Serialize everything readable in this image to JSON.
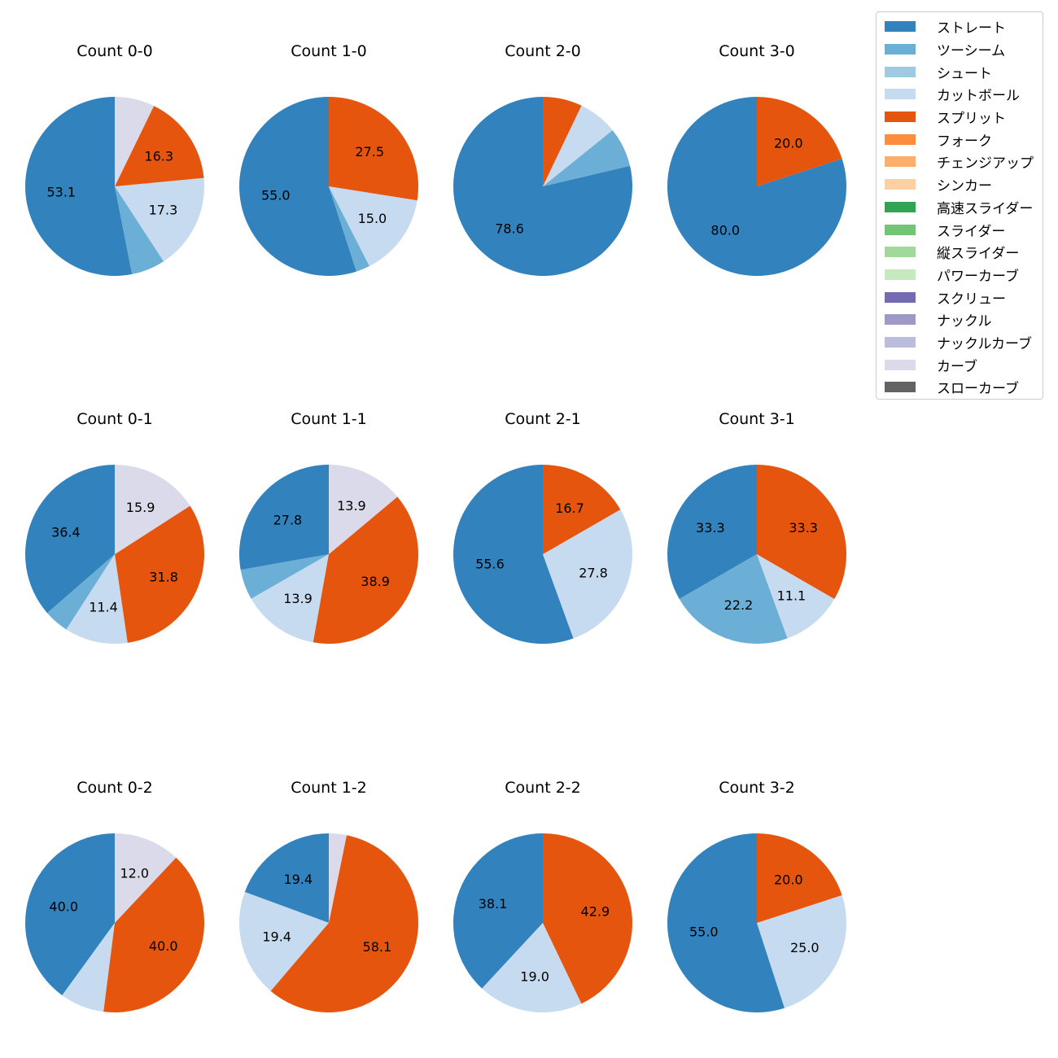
{
  "chart_data": {
    "type": "pie",
    "legend": {
      "placement": "top-right",
      "entries": [
        {
          "name": "ストレート",
          "color": "#3182bd"
        },
        {
          "name": "ツーシーム",
          "color": "#6baed6"
        },
        {
          "name": "シュート",
          "color": "#9ecae1"
        },
        {
          "name": "カットボール",
          "color": "#c6dbef"
        },
        {
          "name": "スプリット",
          "color": "#e6550d"
        },
        {
          "name": "フォーク",
          "color": "#fd8d3c"
        },
        {
          "name": "チェンジアップ",
          "color": "#fdae6b"
        },
        {
          "name": "シンカー",
          "color": "#fdd0a2"
        },
        {
          "name": "高速スライダー",
          "color": "#31a354"
        },
        {
          "name": "スライダー",
          "color": "#74c476"
        },
        {
          "name": "縦スライダー",
          "color": "#a1d99b"
        },
        {
          "name": "パワーカーブ",
          "color": "#c7e9c0"
        },
        {
          "name": "スクリュー",
          "color": "#756bb1"
        },
        {
          "name": "ナックル",
          "color": "#9e9ac8"
        },
        {
          "name": "ナックルカーブ",
          "color": "#bcbddc"
        },
        {
          "name": "カーブ",
          "color": "#dadaeb"
        },
        {
          "name": "スローカーブ",
          "color": "#636363"
        }
      ]
    },
    "pies": [
      {
        "title": "Count 0-0",
        "slices": [
          {
            "name": "ストレート",
            "value": 53.1,
            "label": "53.1"
          },
          {
            "name": "ツーシーム",
            "value": 6.1
          },
          {
            "name": "カットボール",
            "value": 17.3,
            "label": "17.3"
          },
          {
            "name": "スプリット",
            "value": 16.3,
            "label": "16.3"
          },
          {
            "name": "カーブ",
            "value": 7.2
          }
        ]
      },
      {
        "title": "Count 1-0",
        "slices": [
          {
            "name": "ストレート",
            "value": 55.0,
            "label": "55.0"
          },
          {
            "name": "ツーシーム",
            "value": 2.5
          },
          {
            "name": "カットボール",
            "value": 15.0,
            "label": "15.0"
          },
          {
            "name": "スプリット",
            "value": 27.5,
            "label": "27.5"
          }
        ]
      },
      {
        "title": "Count 2-0",
        "slices": [
          {
            "name": "ストレート",
            "value": 78.6,
            "label": "78.6"
          },
          {
            "name": "ツーシーム",
            "value": 7.1
          },
          {
            "name": "カットボール",
            "value": 7.1
          },
          {
            "name": "スプリット",
            "value": 7.1
          }
        ]
      },
      {
        "title": "Count 3-0",
        "slices": [
          {
            "name": "ストレート",
            "value": 80.0,
            "label": "80.0"
          },
          {
            "name": "スプリット",
            "value": 20.0,
            "label": "20.0"
          }
        ]
      },
      {
        "title": "Count 0-1",
        "slices": [
          {
            "name": "ストレート",
            "value": 36.4,
            "label": "36.4"
          },
          {
            "name": "ツーシーム",
            "value": 4.5
          },
          {
            "name": "カットボール",
            "value": 11.4,
            "label": "11.4"
          },
          {
            "name": "スプリット",
            "value": 31.8,
            "label": "31.8"
          },
          {
            "name": "カーブ",
            "value": 15.9,
            "label": "15.9"
          }
        ]
      },
      {
        "title": "Count 1-1",
        "slices": [
          {
            "name": "ストレート",
            "value": 27.8,
            "label": "27.8"
          },
          {
            "name": "ツーシーム",
            "value": 5.5
          },
          {
            "name": "カットボール",
            "value": 13.9,
            "label": "13.9"
          },
          {
            "name": "スプリット",
            "value": 38.9,
            "label": "38.9"
          },
          {
            "name": "カーブ",
            "value": 13.9,
            "label": "13.9"
          }
        ]
      },
      {
        "title": "Count 2-1",
        "slices": [
          {
            "name": "ストレート",
            "value": 55.6,
            "label": "55.6"
          },
          {
            "name": "カットボール",
            "value": 27.8,
            "label": "27.8"
          },
          {
            "name": "スプリット",
            "value": 16.7,
            "label": "16.7"
          }
        ]
      },
      {
        "title": "Count 3-1",
        "slices": [
          {
            "name": "ストレート",
            "value": 33.3,
            "label": "33.3"
          },
          {
            "name": "ツーシーム",
            "value": 22.2,
            "label": "22.2"
          },
          {
            "name": "カットボール",
            "value": 11.1,
            "label": "11.1"
          },
          {
            "name": "スプリット",
            "value": 33.3,
            "label": "33.3"
          }
        ]
      },
      {
        "title": "Count 0-2",
        "slices": [
          {
            "name": "ストレート",
            "value": 40.0,
            "label": "40.0"
          },
          {
            "name": "カットボール",
            "value": 8.0
          },
          {
            "name": "スプリット",
            "value": 40.0,
            "label": "40.0"
          },
          {
            "name": "カーブ",
            "value": 12.0,
            "label": "12.0"
          }
        ]
      },
      {
        "title": "Count 1-2",
        "slices": [
          {
            "name": "ストレート",
            "value": 19.4,
            "label": "19.4"
          },
          {
            "name": "カットボール",
            "value": 19.4,
            "label": "19.4"
          },
          {
            "name": "スプリット",
            "value": 58.1,
            "label": "58.1"
          },
          {
            "name": "カーブ",
            "value": 3.2
          }
        ]
      },
      {
        "title": "Count 2-2",
        "slices": [
          {
            "name": "ストレート",
            "value": 38.1,
            "label": "38.1"
          },
          {
            "name": "カットボール",
            "value": 19.0,
            "label": "19.0"
          },
          {
            "name": "スプリット",
            "value": 42.9,
            "label": "42.9"
          }
        ]
      },
      {
        "title": "Count 3-2",
        "slices": [
          {
            "name": "ストレート",
            "value": 55.0,
            "label": "55.0"
          },
          {
            "name": "カットボール",
            "value": 25.0,
            "label": "25.0"
          },
          {
            "name": "スプリット",
            "value": 20.0,
            "label": "20.0"
          }
        ]
      }
    ]
  }
}
